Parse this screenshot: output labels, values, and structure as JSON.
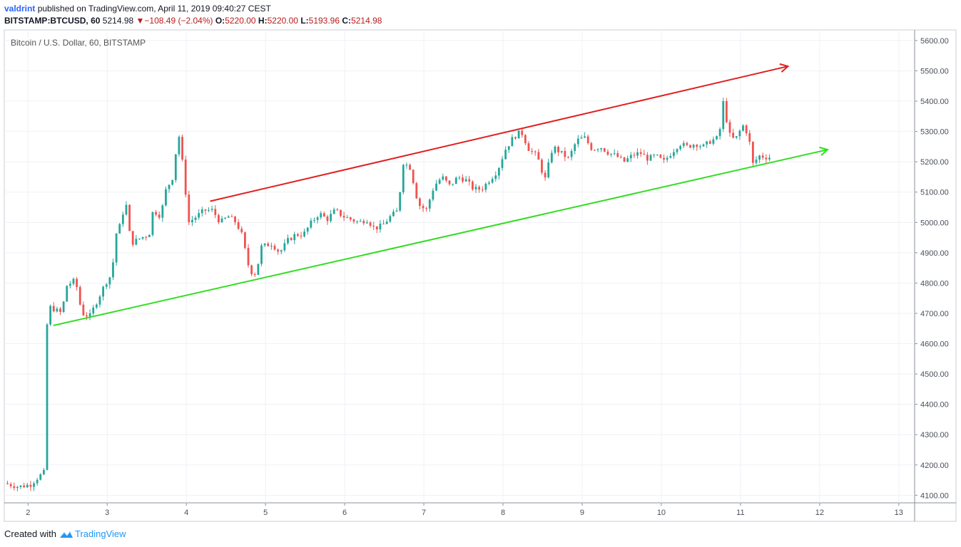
{
  "header": {
    "author": "valdrint",
    "published_text": "published on TradingView.com, April 11, 2019 09:40:27 CEST",
    "symbol": "BITSTAMP:BTCUSD, 60",
    "last": "5214.98",
    "change_arrow": "▼",
    "change": "−108.49 (−2.04%)",
    "o_label": "O:",
    "o_value": "5220.00",
    "h_label": "H:",
    "h_value": "5220.00",
    "l_label": "L:",
    "l_value": "5193.96",
    "c_label": "C:",
    "c_value": "5214.98"
  },
  "chart_title": "Bitcoin / U.S. Dollar, 60, BITSTAMP",
  "footer": {
    "created_with": "Created with",
    "brand": "TradingView"
  },
  "colors": {
    "up": "#26a69a",
    "down": "#ef5350",
    "resistance": "#e02020",
    "support": "#33dd22",
    "grid": "#eef1f6"
  },
  "chart_data": {
    "type": "candlestick",
    "title": "Bitcoin / U.S. Dollar, 60, BITSTAMP",
    "xlabel": "",
    "ylabel": "",
    "x_ticks": [
      "2",
      "3",
      "4",
      "5",
      "6",
      "7",
      "8",
      "9",
      "10",
      "11",
      "12",
      "13"
    ],
    "x_range_days": [
      1.7,
      13.2
    ],
    "y_ticks": [
      "5600.00",
      "5500.00",
      "5400.00",
      "5300.00",
      "5200.00",
      "5100.00",
      "5000.00",
      "4900.00",
      "4800.00",
      "4700.00",
      "4600.00",
      "4500.00",
      "4400.00",
      "4300.00",
      "4200.00",
      "4100.00"
    ],
    "ylim": [
      4075,
      5635
    ],
    "grid": true,
    "price_path": [
      [
        1.72,
        4140
      ],
      [
        1.9,
        4128
      ],
      [
        2.05,
        4135
      ],
      [
        2.15,
        4160
      ],
      [
        2.22,
        4175
      ],
      [
        2.26,
        4660
      ],
      [
        2.3,
        4720
      ],
      [
        2.45,
        4700
      ],
      [
        2.5,
        4790
      ],
      [
        2.62,
        4810
      ],
      [
        2.7,
        4700
      ],
      [
        2.8,
        4690
      ],
      [
        2.9,
        4745
      ],
      [
        3.0,
        4800
      ],
      [
        3.08,
        4830
      ],
      [
        3.13,
        4960
      ],
      [
        3.2,
        5000
      ],
      [
        3.25,
        5080
      ],
      [
        3.32,
        4930
      ],
      [
        3.45,
        4950
      ],
      [
        3.55,
        4960
      ],
      [
        3.6,
        5040
      ],
      [
        3.7,
        5020
      ],
      [
        3.75,
        5100
      ],
      [
        3.85,
        5150
      ],
      [
        3.92,
        5300
      ],
      [
        3.98,
        5180
      ],
      [
        4.05,
        5000
      ],
      [
        4.15,
        5020
      ],
      [
        4.25,
        5040
      ],
      [
        4.35,
        5040
      ],
      [
        4.45,
        5000
      ],
      [
        4.55,
        5020
      ],
      [
        4.65,
        5000
      ],
      [
        4.72,
        4960
      ],
      [
        4.82,
        4840
      ],
      [
        4.9,
        4830
      ],
      [
        4.97,
        4920
      ],
      [
        5.1,
        4930
      ],
      [
        5.2,
        4900
      ],
      [
        5.3,
        4940
      ],
      [
        5.4,
        4960
      ],
      [
        5.5,
        4960
      ],
      [
        5.6,
        5000
      ],
      [
        5.7,
        5030
      ],
      [
        5.8,
        5010
      ],
      [
        5.9,
        5040
      ],
      [
        6.0,
        5020
      ],
      [
        6.1,
        5010
      ],
      [
        6.2,
        5000
      ],
      [
        6.3,
        5010
      ],
      [
        6.4,
        4980
      ],
      [
        6.5,
        4990
      ],
      [
        6.6,
        5020
      ],
      [
        6.7,
        5040
      ],
      [
        6.75,
        5200
      ],
      [
        6.85,
        5180
      ],
      [
        6.95,
        5060
      ],
      [
        7.05,
        5040
      ],
      [
        7.15,
        5120
      ],
      [
        7.25,
        5150
      ],
      [
        7.35,
        5120
      ],
      [
        7.45,
        5150
      ],
      [
        7.55,
        5140
      ],
      [
        7.65,
        5110
      ],
      [
        7.75,
        5110
      ],
      [
        7.85,
        5140
      ],
      [
        7.95,
        5170
      ],
      [
        8.05,
        5240
      ],
      [
        8.15,
        5280
      ],
      [
        8.25,
        5300
      ],
      [
        8.35,
        5240
      ],
      [
        8.45,
        5220
      ],
      [
        8.55,
        5140
      ],
      [
        8.65,
        5250
      ],
      [
        8.75,
        5230
      ],
      [
        8.85,
        5210
      ],
      [
        8.95,
        5270
      ],
      [
        9.05,
        5280
      ],
      [
        9.15,
        5240
      ],
      [
        9.25,
        5250
      ],
      [
        9.35,
        5230
      ],
      [
        9.45,
        5220
      ],
      [
        9.55,
        5200
      ],
      [
        9.65,
        5220
      ],
      [
        9.75,
        5230
      ],
      [
        9.85,
        5210
      ],
      [
        9.95,
        5220
      ],
      [
        10.05,
        5200
      ],
      [
        10.15,
        5230
      ],
      [
        10.25,
        5260
      ],
      [
        10.35,
        5250
      ],
      [
        10.45,
        5260
      ],
      [
        10.55,
        5250
      ],
      [
        10.65,
        5270
      ],
      [
        10.75,
        5280
      ],
      [
        10.8,
        5400
      ],
      [
        10.88,
        5290
      ],
      [
        10.95,
        5270
      ],
      [
        11.05,
        5320
      ],
      [
        11.12,
        5290
      ],
      [
        11.18,
        5190
      ],
      [
        11.25,
        5220
      ],
      [
        11.35,
        5215
      ]
    ],
    "annotations": [
      {
        "name": "resistance",
        "points": [
          [
            4.3,
            5070
          ],
          [
            11.6,
            5515
          ]
        ],
        "color": "#e02020"
      },
      {
        "name": "support",
        "points": [
          [
            2.32,
            4660
          ],
          [
            12.1,
            5240
          ]
        ],
        "color": "#33dd22"
      }
    ]
  }
}
